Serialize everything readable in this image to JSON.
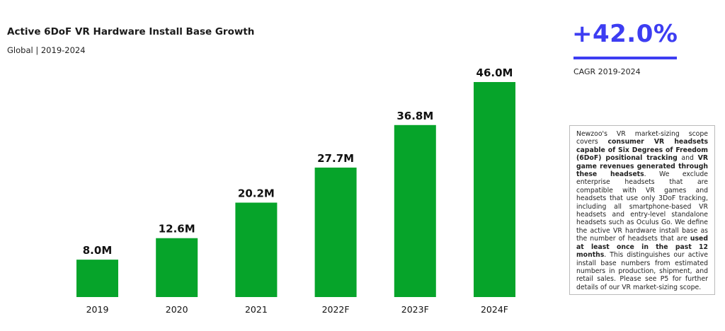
{
  "chart_data": {
    "type": "bar",
    "title": "Active 6DoF VR Hardware Install Base Growth",
    "subtitle": "Global | 2019-2024",
    "categories": [
      "2019",
      "2020",
      "2021",
      "2022F",
      "2023F",
      "2024F"
    ],
    "values": [
      8.0,
      12.6,
      20.2,
      27.7,
      36.8,
      46.0
    ],
    "data_labels": [
      "8.0M",
      "12.6M",
      "20.2M",
      "27.7M",
      "36.8M",
      "46.0M"
    ],
    "unit": "M",
    "ylim": [
      0,
      46
    ],
    "grid": false,
    "bar_color": "#06a42a"
  },
  "kpi": {
    "value": "+42.0%",
    "label": "CAGR 2019-2024",
    "color": "#3d3df2"
  },
  "note": [
    {
      "t": "Newzoo's VR market-sizing scope covers ",
      "b": false
    },
    {
      "t": "consumer VR headsets capable of Six Degrees of Freedom (6DoF) positional tracking",
      "b": true
    },
    {
      "t": " and ",
      "b": false
    },
    {
      "t": "VR game revenues generated through these headsets",
      "b": true
    },
    {
      "t": ". We exclude enterprise headsets that are compatible with VR games and headsets that use only 3DoF tracking, including all smartphone-based VR headsets and entry-level standalone headsets such as Oculus Go. We define the active VR hardware install base as the number of headsets that are ",
      "b": false
    },
    {
      "t": "used at least once in the past 12 months",
      "b": true
    },
    {
      "t": ". This distinguishes our active install base numbers from estimated numbers in production, shipment, and retail sales. Please see P5 for further details of our VR market-sizing scope.",
      "b": false
    }
  ]
}
